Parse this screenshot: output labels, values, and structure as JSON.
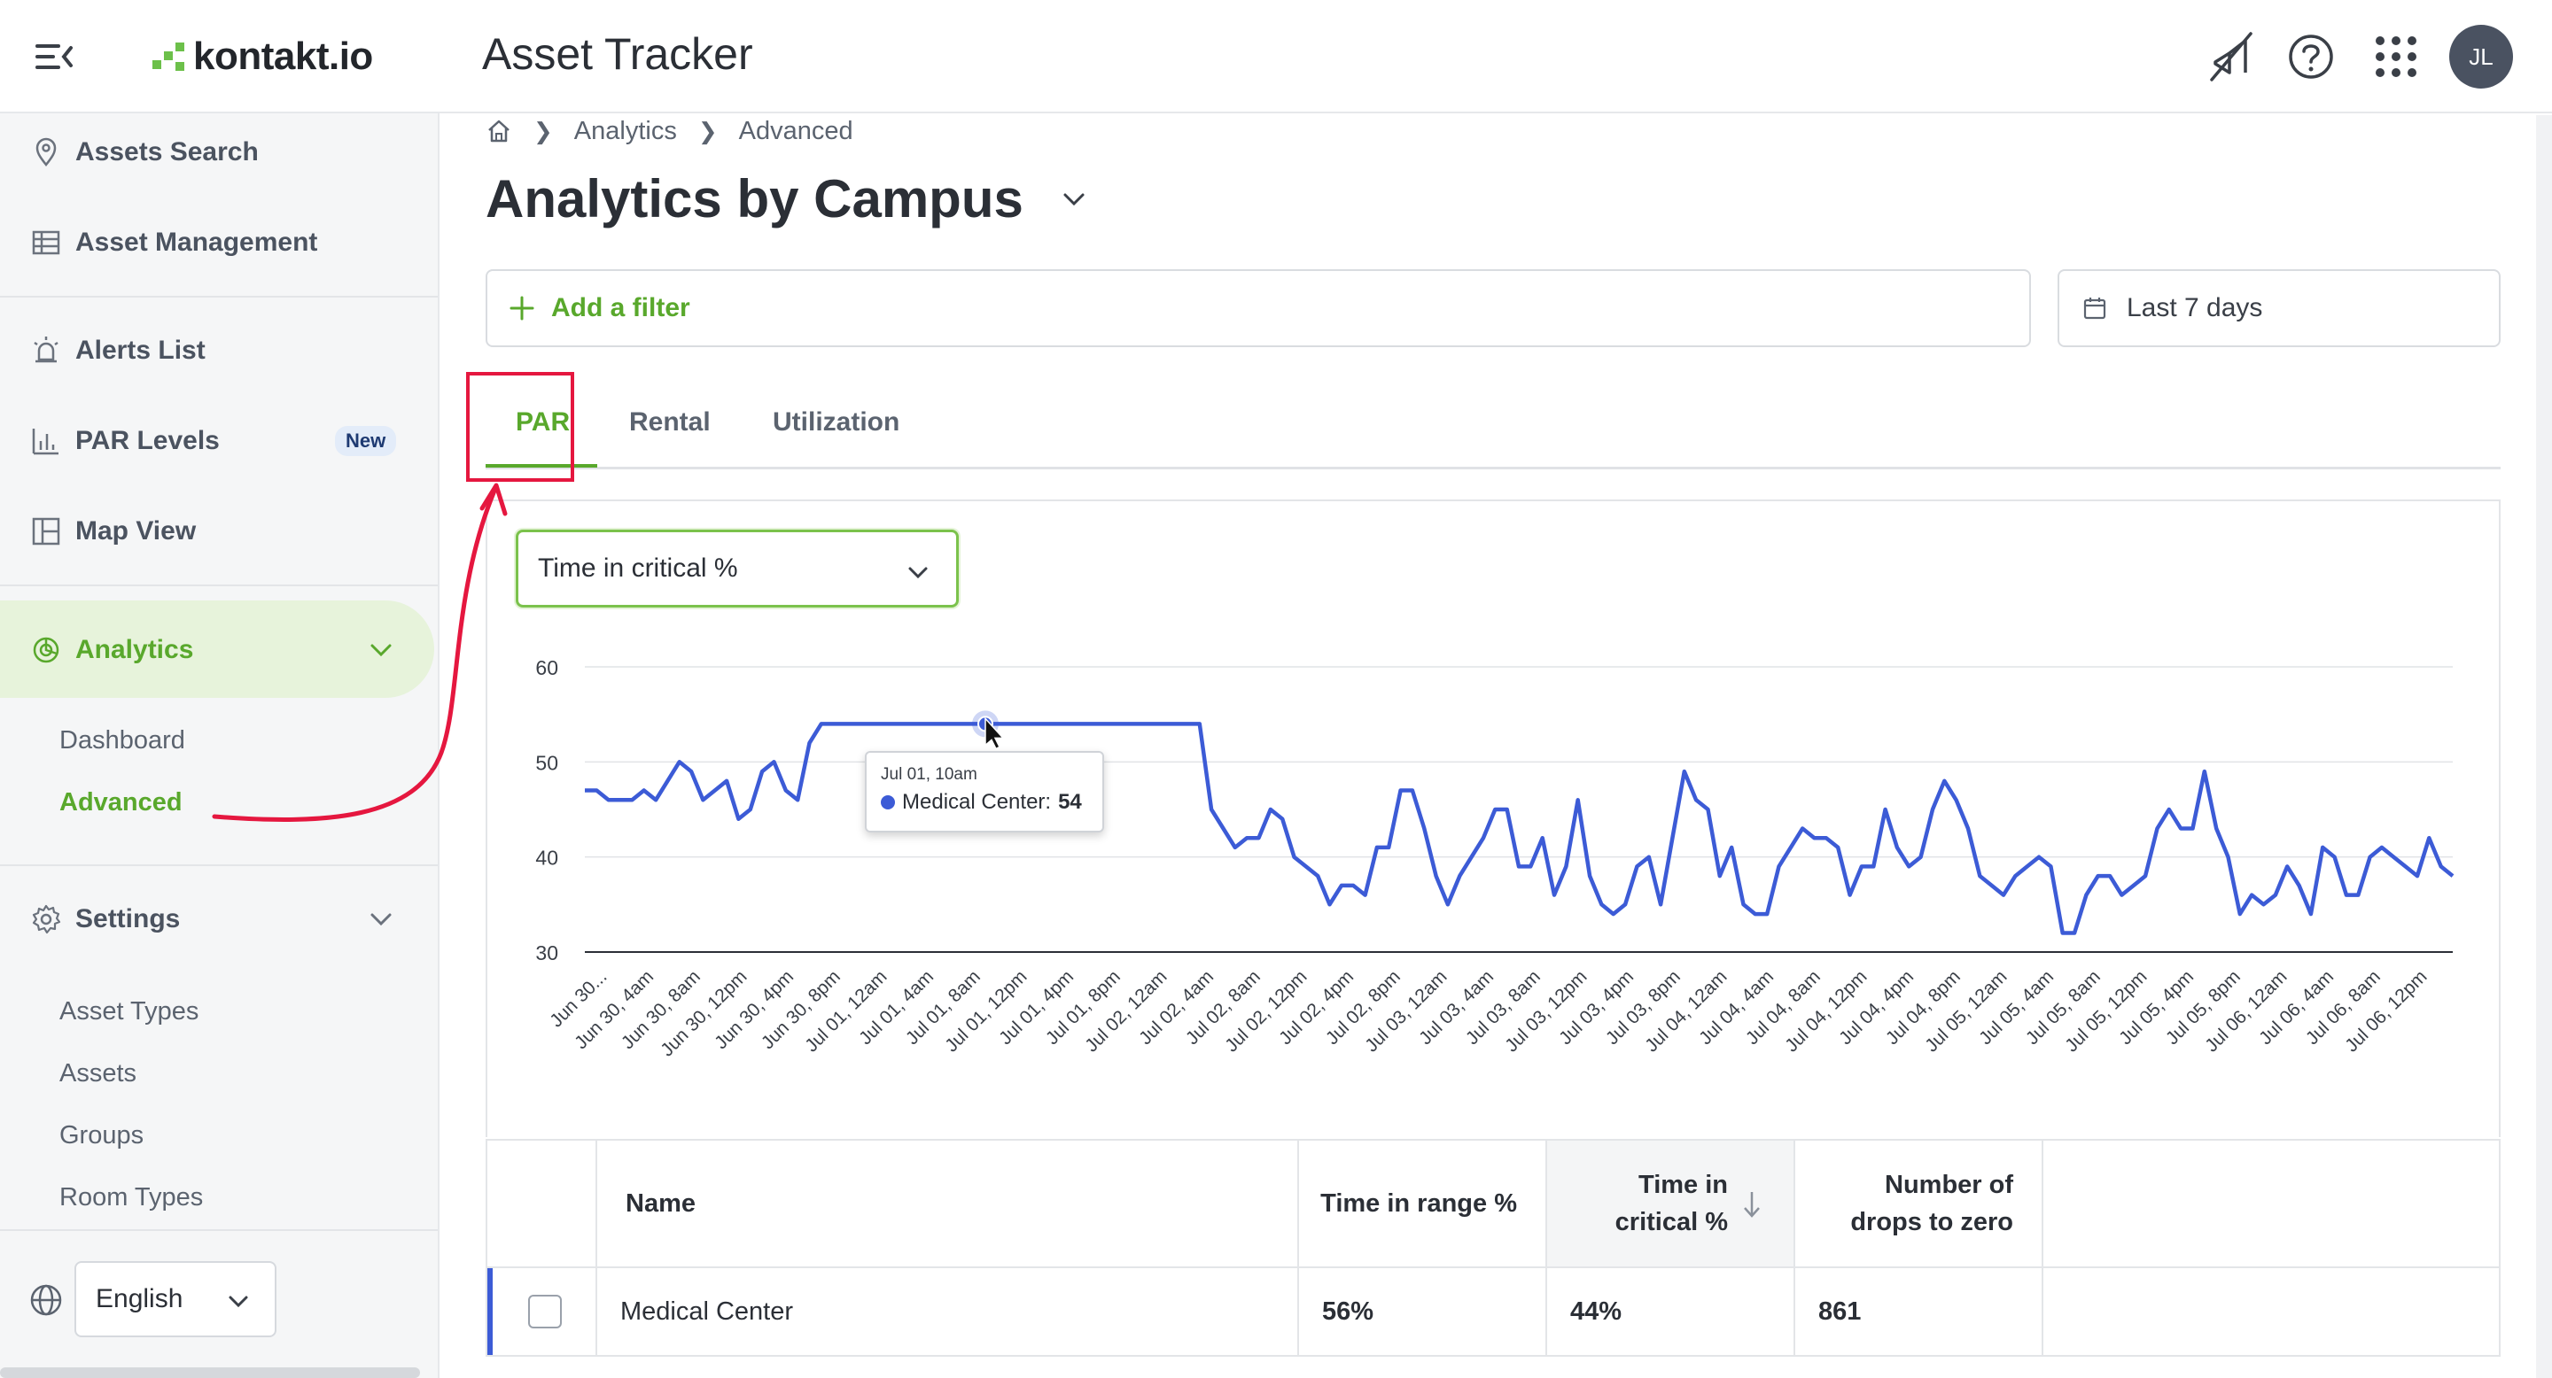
{
  "header": {
    "logo_text": "kontakt.io",
    "app_title": "Asset Tracker",
    "avatar_initials": "JL",
    "icons": [
      "menu-collapse-icon",
      "notifications-off-icon",
      "help-icon",
      "apps-grid-icon"
    ]
  },
  "sidebar": {
    "items": [
      {
        "label": "Assets Search",
        "icon": "map-pin-icon"
      },
      {
        "label": "Asset Management",
        "icon": "table-icon"
      },
      {
        "label": "Alerts List",
        "icon": "siren-icon"
      },
      {
        "label": "PAR Levels",
        "icon": "bar-chart-icon",
        "badge": "New"
      },
      {
        "label": "Map View",
        "icon": "map-layout-icon"
      },
      {
        "label": "Analytics",
        "icon": "pie-chart-icon"
      },
      {
        "label": "Settings",
        "icon": "gear-icon"
      }
    ],
    "analytics_sub": [
      "Dashboard",
      "Advanced"
    ],
    "settings_sub": [
      "Asset Types",
      "Assets",
      "Groups",
      "Room Types"
    ],
    "language": "English"
  },
  "breadcrumb": [
    "Analytics",
    "Advanced"
  ],
  "page": {
    "title": "Analytics by Campus",
    "add_filter": "Add a filter",
    "date_range": "Last 7 days",
    "tabs": [
      "PAR",
      "Rental",
      "Utilization"
    ],
    "metric": "Time in critical %"
  },
  "tooltip": {
    "title": "Jul 01, 10am",
    "series": "Medical Center:",
    "value": "54"
  },
  "chart_data": {
    "type": "line",
    "title": "",
    "xlabel": "",
    "ylabel": "",
    "ylim": [
      30,
      60
    ],
    "yticks": [
      30,
      40,
      50,
      60
    ],
    "x_ticks": [
      "Jun 30...",
      "Jun 30, 4am",
      "Jun 30, 8am",
      "Jun 30, 12pm",
      "Jun 30, 4pm",
      "Jun 30, 8pm",
      "Jul 01, 12am",
      "Jul 01, 4am",
      "Jul 01, 8am",
      "Jul 01, 12pm",
      "Jul 01, 4pm",
      "Jul 01, 8pm",
      "Jul 02, 12am",
      "Jul 02, 4am",
      "Jul 02, 8am",
      "Jul 02, 12pm",
      "Jul 02, 4pm",
      "Jul 02, 8pm",
      "Jul 03, 12am",
      "Jul 03, 4am",
      "Jul 03, 8am",
      "Jul 03, 12pm",
      "Jul 03, 4pm",
      "Jul 03, 8pm",
      "Jul 04, 12am",
      "Jul 04, 4am",
      "Jul 04, 8am",
      "Jul 04, 12pm",
      "Jul 04, 4pm",
      "Jul 04, 8pm",
      "Jul 05, 12am",
      "Jul 05, 4am",
      "Jul 05, 8am",
      "Jul 05, 12pm",
      "Jul 05, 4pm",
      "Jul 05, 8pm",
      "Jul 06, 12am",
      "Jul 06, 4am",
      "Jul 06, 8am",
      "Jul 06, 12pm"
    ],
    "series": [
      {
        "name": "Medical Center",
        "color": "#3c5bd6",
        "values": [
          47,
          47,
          46,
          46,
          46,
          47,
          46,
          48,
          50,
          49,
          46,
          47,
          48,
          44,
          45,
          49,
          50,
          47,
          46,
          52,
          54,
          54,
          54,
          54,
          54,
          54,
          54,
          54,
          54,
          54,
          54,
          54,
          54,
          54,
          54,
          54,
          54,
          54,
          54,
          54,
          54,
          54,
          54,
          54,
          54,
          54,
          54,
          54,
          54,
          54,
          54,
          54,
          54,
          45,
          43,
          41,
          42,
          42,
          45,
          44,
          40,
          39,
          38,
          35,
          37,
          37,
          36,
          41,
          41,
          47,
          47,
          43,
          38,
          35,
          38,
          40,
          42,
          45,
          45,
          39,
          39,
          42,
          36,
          39,
          46,
          38,
          35,
          34,
          35,
          39,
          40,
          35,
          42,
          49,
          46,
          45,
          38,
          41,
          35,
          34,
          34,
          39,
          41,
          43,
          42,
          42,
          41,
          36,
          39,
          39,
          45,
          41,
          39,
          40,
          45,
          48,
          46,
          43,
          38,
          37,
          36,
          38,
          39,
          40,
          39,
          32,
          32,
          36,
          38,
          38,
          36,
          37,
          38,
          43,
          45,
          43,
          43,
          49,
          43,
          40,
          34,
          36,
          35,
          36,
          39,
          37,
          34,
          41,
          40,
          36,
          36,
          40,
          41,
          40,
          39,
          38,
          42,
          39,
          38
        ]
      }
    ],
    "highlight_point": {
      "x": "Jul 01, 10am",
      "y": 54
    }
  },
  "table": {
    "columns": [
      "Name",
      "Time in range %",
      "Time in critical %",
      "Number of drops to zero"
    ],
    "rows": [
      {
        "name": "Medical Center",
        "time_in_range": "56%",
        "time_in_critical": "44%",
        "drops": "861"
      }
    ]
  },
  "colors": {
    "brand_green": "#59a82c",
    "series_blue": "#3c5bd6",
    "annotation_red": "#e5173f"
  }
}
